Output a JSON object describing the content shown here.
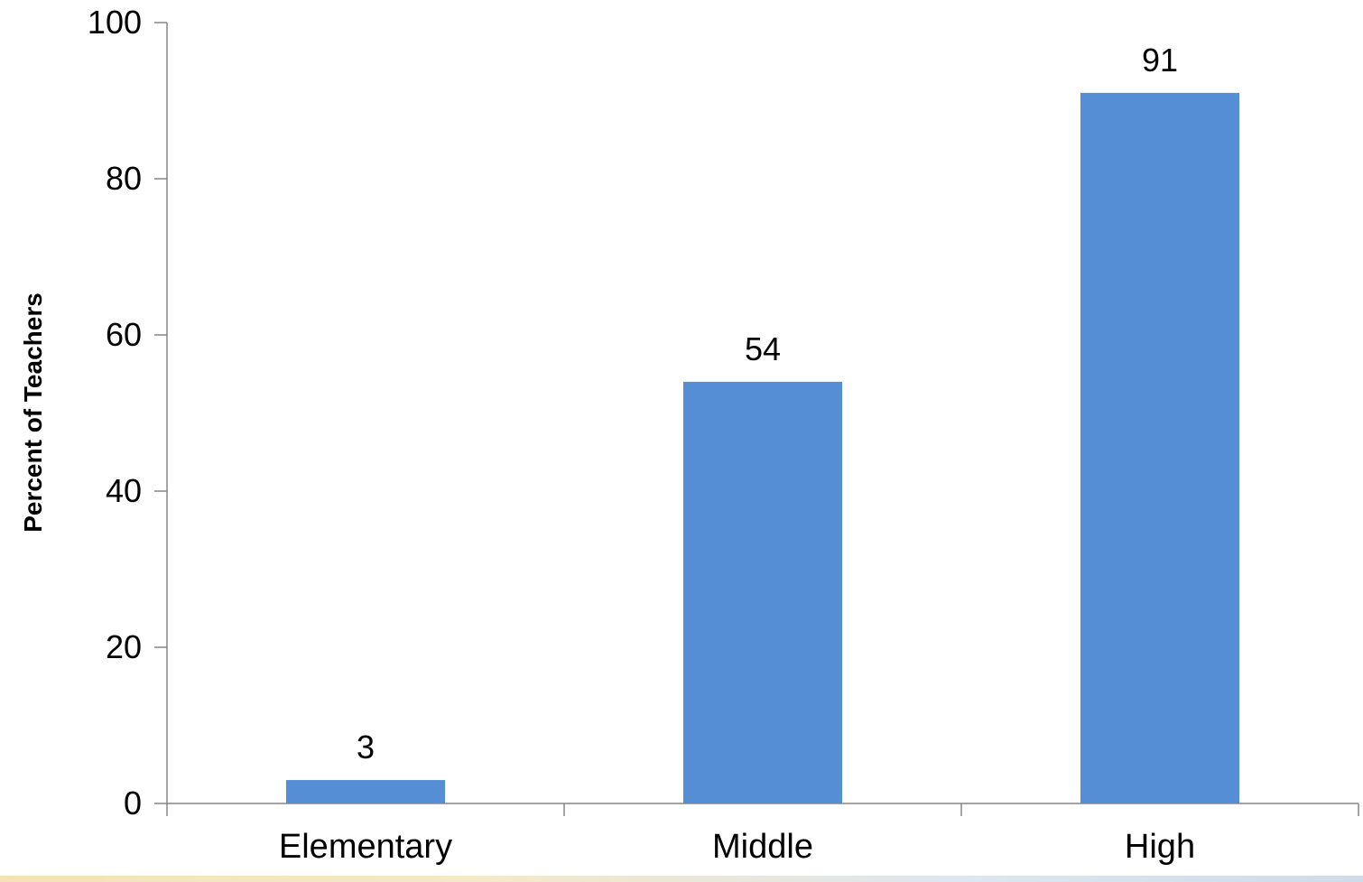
{
  "chart_data": {
    "type": "bar",
    "categories": [
      "Elementary",
      "Middle",
      "High"
    ],
    "values": [
      3,
      54,
      91
    ],
    "data_labels": [
      "3",
      "54",
      "91"
    ],
    "title": "",
    "xlabel": "",
    "ylabel": "Percent of Teachers",
    "ylim": [
      0,
      100
    ],
    "yticks": [
      0,
      20,
      40,
      60,
      80,
      100
    ],
    "grid": false,
    "legend": "none",
    "bar_color": "#558ed5",
    "axis_color": "#868686"
  }
}
